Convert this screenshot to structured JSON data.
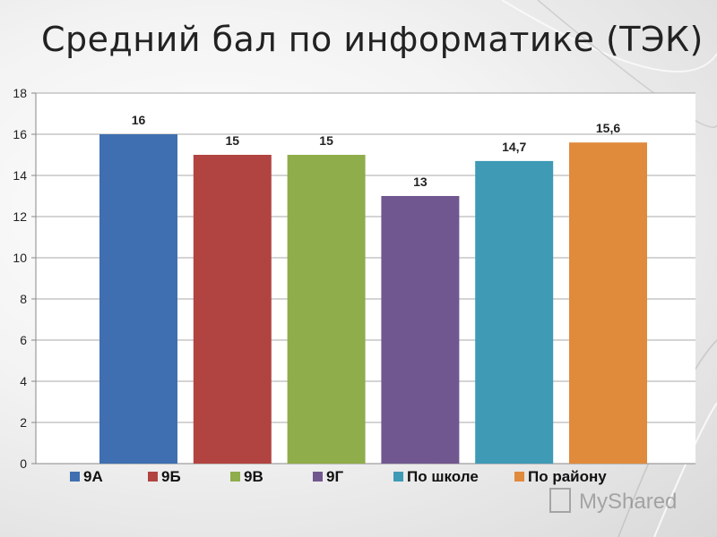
{
  "chart_data": {
    "type": "bar",
    "title": "Средний бал по информатике (ТЭК)",
    "categories": [
      "9А",
      "9Б",
      "9В",
      "9Г",
      "По школе",
      "По району"
    ],
    "values": [
      16,
      15,
      15,
      13,
      14.7,
      15.6
    ],
    "value_labels": [
      "16",
      "15",
      "15",
      "13",
      "14,7",
      "15,6"
    ],
    "colors": [
      "#3f6fb0",
      "#b14441",
      "#8fad4b",
      "#71578f",
      "#3e9ab5",
      "#e08a3c"
    ],
    "ylim": [
      0,
      18
    ],
    "yticks": [
      0,
      2,
      4,
      6,
      8,
      10,
      12,
      14,
      16,
      18
    ],
    "grid": true,
    "legend_position": "bottom"
  },
  "watermark": {
    "text": "MyShared",
    "icon": "ppt-icon"
  }
}
